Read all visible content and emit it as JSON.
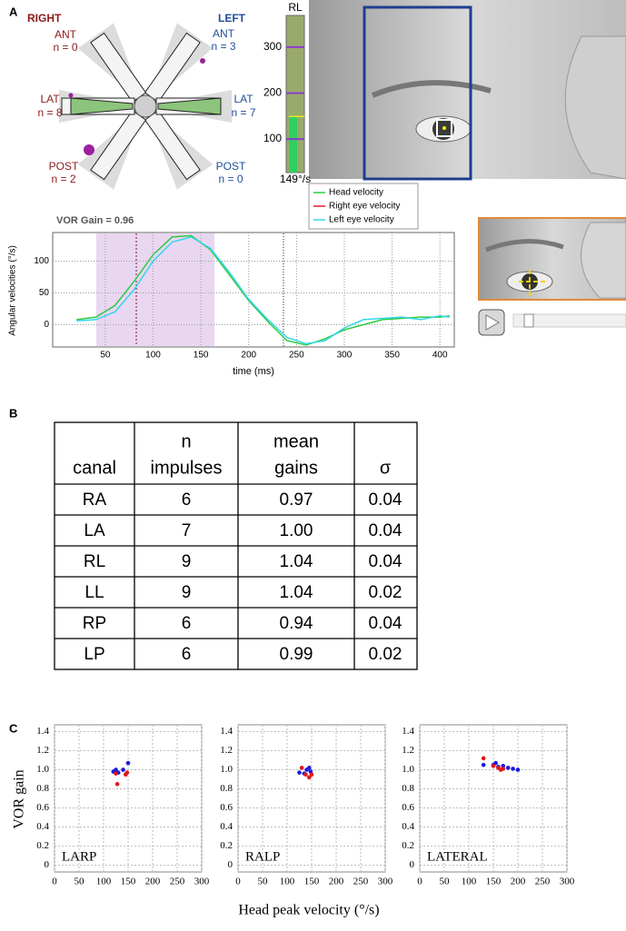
{
  "panel_labels": [
    "A",
    "B",
    "C"
  ],
  "polar": {
    "right_title": "RIGHT",
    "left_title": "LEFT",
    "right": [
      {
        "canal": "ANT",
        "n": "n = 0"
      },
      {
        "canal": "LAT",
        "n": "n = 8"
      },
      {
        "canal": "POST",
        "n": "n = 2"
      }
    ],
    "left": [
      {
        "canal": "ANT",
        "n": "n = 3"
      },
      {
        "canal": "LAT",
        "n": "n = 7"
      },
      {
        "canal": "POST",
        "n": "n = 0"
      }
    ]
  },
  "table": {
    "header": [
      [
        "canal"
      ],
      [
        "n",
        "impulses"
      ],
      [
        "mean",
        "gains"
      ],
      [
        "σ"
      ]
    ],
    "rows": [
      [
        "RA",
        "6",
        "0.97",
        "0.04"
      ],
      [
        "LA",
        "7",
        "1.00",
        "0.04"
      ],
      [
        "RL",
        "9",
        "1.04",
        "0.04"
      ],
      [
        "LL",
        "9",
        "1.04",
        "0.02"
      ],
      [
        "RP",
        "6",
        "0.94",
        "0.04"
      ],
      [
        "LP",
        "6",
        "0.99",
        "0.02"
      ]
    ]
  },
  "panel_c": {
    "y_label": "VOR gain",
    "x_label": "Head peak velocity (°/s)"
  },
  "chart_data": [
    {
      "type": "bar",
      "title": "RL",
      "categories": [
        null
      ],
      "values": [
        149
      ],
      "value_labels": [
        "149°/s"
      ],
      "color": "#2fd060",
      "ylim": [
        27,
        369
      ],
      "yticks": [
        100,
        200,
        300
      ]
    },
    {
      "type": "line",
      "title": "VOR Gain = 0.96",
      "x_label": "time (ms)",
      "y_label": "Angular velocities (°/s)",
      "x": [
        20,
        40,
        60,
        80,
        100,
        120,
        140,
        160,
        180,
        200,
        220,
        240,
        260,
        280,
        300,
        320,
        340,
        360,
        380,
        400,
        410
      ],
      "series": [
        {
          "name": "Head velocity",
          "color": "#2ecc40",
          "values": [
            8,
            12,
            30,
            68,
            110,
            138,
            140,
            118,
            78,
            38,
            5,
            -25,
            -32,
            -22,
            -8,
            0,
            8,
            10,
            12,
            12,
            14
          ]
        },
        {
          "name": "Right eye velocity",
          "color": "#e02020",
          "values": [
            null,
            null,
            null,
            null,
            null,
            null,
            null,
            null,
            null,
            null,
            null,
            null,
            null,
            null,
            null,
            null,
            null,
            null,
            null,
            null,
            null
          ]
        },
        {
          "name": "Left eye velocity",
          "color": "#33d6e8",
          "values": [
            6,
            8,
            20,
            55,
            100,
            130,
            138,
            120,
            82,
            40,
            8,
            -20,
            -30,
            -25,
            -5,
            8,
            10,
            12,
            8,
            14,
            12
          ]
        }
      ],
      "xlim": [
        -5,
        415
      ],
      "xticks": [
        50,
        100,
        150,
        200,
        250,
        300,
        350,
        400
      ],
      "ylim": [
        -35,
        145
      ],
      "yticks": [
        0,
        50,
        100
      ],
      "grid": true
    },
    {
      "type": "scatter",
      "title": "LARP",
      "xlim": [
        0,
        300
      ],
      "xticks": [
        0,
        50,
        100,
        150,
        200,
        250,
        300
      ],
      "ylim": [
        -0.07,
        1.47
      ],
      "yticks": [
        0,
        0.2,
        0.4,
        0.6,
        0.8,
        {
          "value": 1,
          "label": "1.0"
        },
        1.2,
        1.4
      ],
      "grid": true,
      "series": [
        {
          "color": "#1a1adc",
          "x": [
            120,
            125,
            130,
            140,
            150
          ],
          "values": [
            0.98,
            1.0,
            0.97,
            1.0,
            1.07
          ]
        },
        {
          "color": "#e01818",
          "x": [
            125,
            128,
            145,
            148
          ],
          "values": [
            0.96,
            0.85,
            0.95,
            0.97
          ]
        }
      ]
    },
    {
      "type": "scatter",
      "title": "RALP",
      "xlim": [
        0,
        300
      ],
      "xticks": [
        0,
        50,
        100,
        150,
        200,
        250,
        300
      ],
      "ylim": [
        -0.07,
        1.47
      ],
      "yticks": [
        0,
        0.2,
        0.4,
        0.6,
        0.8,
        {
          "value": 1,
          "label": "1.0"
        },
        1.2,
        1.4
      ],
      "grid": true,
      "series": [
        {
          "color": "#1a1adc",
          "x": [
            125,
            135,
            140,
            145,
            148
          ],
          "values": [
            0.97,
            0.96,
            1.0,
            1.02,
            0.98
          ]
        },
        {
          "color": "#e01818",
          "x": [
            130,
            138,
            145,
            150
          ],
          "values": [
            1.02,
            0.95,
            0.92,
            0.95
          ]
        }
      ]
    },
    {
      "type": "scatter",
      "title": "LATERAL",
      "xlim": [
        0,
        300
      ],
      "xticks": [
        0,
        50,
        100,
        150,
        200,
        250,
        300
      ],
      "ylim": [
        -0.07,
        1.47
      ],
      "yticks": [
        0,
        0.2,
        0.4,
        0.6,
        0.8,
        {
          "value": 1,
          "label": "1.0"
        },
        1.2,
        1.4
      ],
      "grid": true,
      "series": [
        {
          "color": "#1a1adc",
          "x": [
            130,
            150,
            155,
            160,
            170,
            180,
            190,
            200
          ],
          "values": [
            1.05,
            1.05,
            1.07,
            1.03,
            1.04,
            1.02,
            1.01,
            1.0
          ]
        },
        {
          "color": "#e01818",
          "x": [
            130,
            150,
            160,
            165,
            170
          ],
          "values": [
            1.12,
            1.04,
            1.02,
            1.0,
            1.01
          ]
        }
      ]
    }
  ]
}
